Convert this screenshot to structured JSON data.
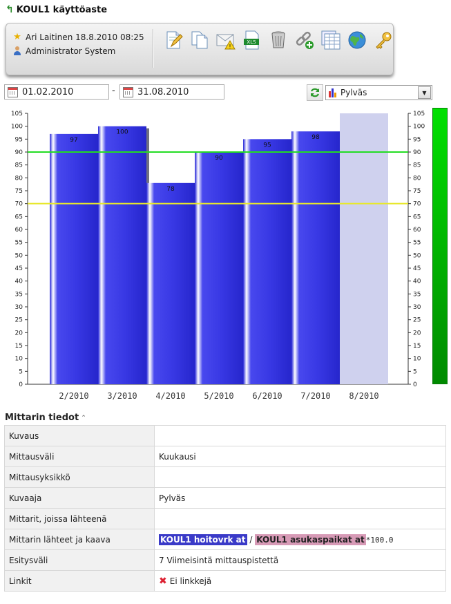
{
  "page": {
    "title": "KOUL1 käyttöaste"
  },
  "user": {
    "line1": "Ari Laitinen 18.8.2010 08:25",
    "line2": "Administrator System"
  },
  "toolbar_icons": [
    "edit-document-icon",
    "copy-document-icon",
    "email-warning-icon",
    "excel-export-icon",
    "trash-icon",
    "link-add-icon",
    "table-view-icon",
    "globe-icon",
    "key-icon"
  ],
  "filters": {
    "start_date": "01.02.2010",
    "separator": "-",
    "end_date": "31.08.2010",
    "chart_type": "Pylväs"
  },
  "chart_data": {
    "type": "bar",
    "categories": [
      "2/2010",
      "3/2010",
      "4/2010",
      "5/2010",
      "6/2010",
      "7/2010",
      "8/2010"
    ],
    "values": [
      97,
      100,
      78,
      90,
      95,
      98,
      null
    ],
    "data_labels": [
      "97",
      "100",
      "78",
      "90",
      "95",
      "98",
      ""
    ],
    "ylim": [
      0,
      105
    ],
    "yticks": [
      0,
      5,
      10,
      15,
      20,
      25,
      30,
      35,
      40,
      45,
      50,
      55,
      60,
      65,
      70,
      75,
      80,
      85,
      90,
      95,
      100,
      105
    ],
    "right_axis": true,
    "thresholds": [
      {
        "value": 90,
        "color": "#22dd22"
      },
      {
        "value": 70,
        "color": "#e8e82a"
      }
    ],
    "bar_color": "#3a3ae0",
    "empty_bar_color": "#cfd1ee",
    "grid": false
  },
  "gauge": {
    "color_top": "#00e000",
    "color_bottom": "#008a00"
  },
  "info": {
    "section_title": "Mittarin tiedot",
    "rows": [
      {
        "label": "Kuvaus",
        "value": ""
      },
      {
        "label": "Mittausväli",
        "value": "Kuukausi"
      },
      {
        "label": "Mittausyksikkö",
        "value": ""
      },
      {
        "label": "Kuvaaja",
        "value": "Pylväs"
      },
      {
        "label": "Mittarit, joissa lähteenä",
        "value": ""
      },
      {
        "label": "Mittarin lähteet ja kaava",
        "value": ""
      },
      {
        "label": "Esitysväli",
        "value": "7 Viimeisintä mittauspistettä"
      },
      {
        "label": "Linkit",
        "value": "Ei linkkejä"
      }
    ],
    "formula": {
      "source1": "KOUL1 hoitovrk at",
      "slash": "/",
      "source2": "KOUL1 asukaspaikat at",
      "suffix": "*100.0"
    }
  }
}
